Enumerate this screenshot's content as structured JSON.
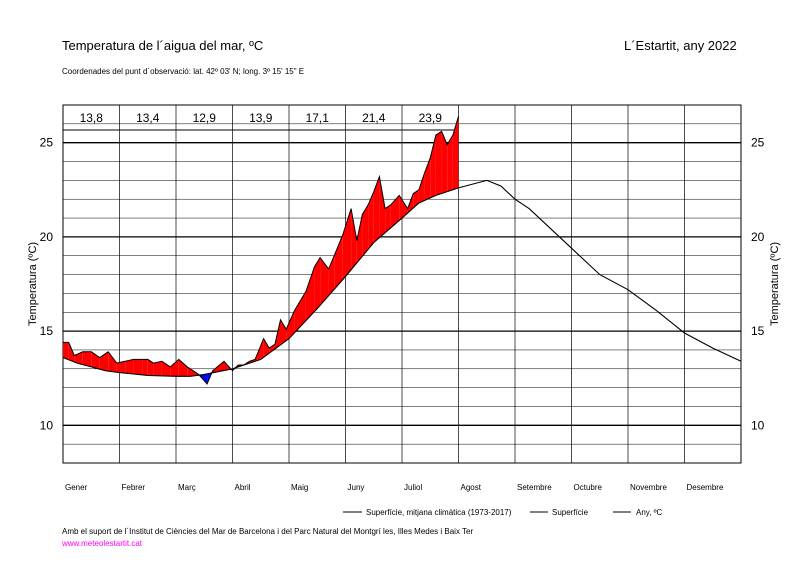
{
  "header": {
    "title": "Temperatura de l´aigua del mar, ºC",
    "location": "L´Estartit, any 2022",
    "subtitle": "Coordenades del punt d´observació: lat. 42º 03' N; long. 3º 15' 15\" E"
  },
  "footer": {
    "credits": "Amb el suport de l´Institut de Ciències del Mar de Barcelona i del Parc Natural del Montgrí les, Illes Medes i Baix Ter",
    "website": "www.meteolestartit.cat"
  },
  "colors": {
    "above": "#ff0000",
    "below": "#0000ff",
    "line": "#000000",
    "grid": "#000000"
  },
  "chart_data": {
    "type": "line",
    "ylabel": "Temperatura (ºC)",
    "ylim": [
      8,
      27
    ],
    "yticks": [
      10,
      15,
      20,
      25
    ],
    "months": [
      "Gener",
      "Febrer",
      "Març",
      "Abril",
      "Maig",
      "Juny",
      "Juliol",
      "Agost",
      "Setembre",
      "Octubre",
      "Novembre",
      "Desembre"
    ],
    "monthly_means": [
      "13,8",
      "13,4",
      "12,9",
      "13,9",
      "17,1",
      "21,4",
      "23,9"
    ],
    "legend": [
      "Superfície, mitjana climàtica (1973-2017)",
      "Superfície",
      "Any,   ºC"
    ],
    "series": [
      {
        "name": "Superfície, mitjana climàtica (1973-2017)",
        "x_unit": "month",
        "x": [
          0,
          0.25,
          0.5,
          0.75,
          1,
          1.5,
          2,
          2.25,
          2.5,
          3,
          3.5,
          4,
          4.5,
          5,
          5.5,
          6,
          6.3,
          6.6,
          7,
          7.25,
          7.5,
          7.75,
          8,
          8.25,
          8.5,
          9,
          9.5,
          10,
          10.5,
          11,
          11.5,
          12
        ],
        "values": [
          13.6,
          13.3,
          13.1,
          12.9,
          12.8,
          12.65,
          12.6,
          12.6,
          12.7,
          13.0,
          13.5,
          14.6,
          16.2,
          17.9,
          19.7,
          21.0,
          21.8,
          22.2,
          22.6,
          22.8,
          23.0,
          22.7,
          22.0,
          21.5,
          20.8,
          19.4,
          18.0,
          17.2,
          16.1,
          14.9,
          14.1,
          13.4
        ]
      },
      {
        "name": "Superfície",
        "x_unit": "month",
        "x": [
          0,
          0.1,
          0.2,
          0.35,
          0.5,
          0.65,
          0.8,
          0.95,
          1.1,
          1.25,
          1.4,
          1.5,
          1.6,
          1.75,
          1.9,
          2.05,
          2.2,
          2.4,
          2.55,
          2.65,
          2.85,
          3.0,
          3.1,
          3.2,
          3.3,
          3.4,
          3.55,
          3.65,
          3.75,
          3.85,
          3.95,
          4.1,
          4.3,
          4.45,
          4.55,
          4.7,
          4.8,
          4.95,
          5.1,
          5.2,
          5.3,
          5.4,
          5.5,
          5.6,
          5.7,
          5.8,
          5.95,
          6.1,
          6.2,
          6.3,
          6.4,
          6.5,
          6.6,
          6.7,
          6.8,
          6.9,
          7.0
        ],
        "values": [
          14.4,
          14.4,
          13.7,
          13.9,
          13.9,
          13.6,
          13.9,
          13.3,
          13.4,
          13.5,
          13.5,
          13.5,
          13.3,
          13.4,
          13.1,
          13.5,
          13.1,
          12.7,
          12.2,
          12.9,
          13.4,
          12.9,
          13.2,
          13.2,
          13.4,
          13.5,
          14.6,
          14.1,
          14.3,
          15.6,
          15.1,
          16.1,
          17.1,
          18.4,
          18.9,
          18.3,
          19.0,
          20.1,
          21.5,
          19.8,
          21.2,
          21.7,
          22.4,
          23.2,
          21.5,
          21.7,
          22.2,
          21.5,
          22.3,
          22.5,
          23.4,
          24.2,
          25.4,
          25.6,
          24.9,
          25.4,
          26.4
        ]
      }
    ]
  }
}
